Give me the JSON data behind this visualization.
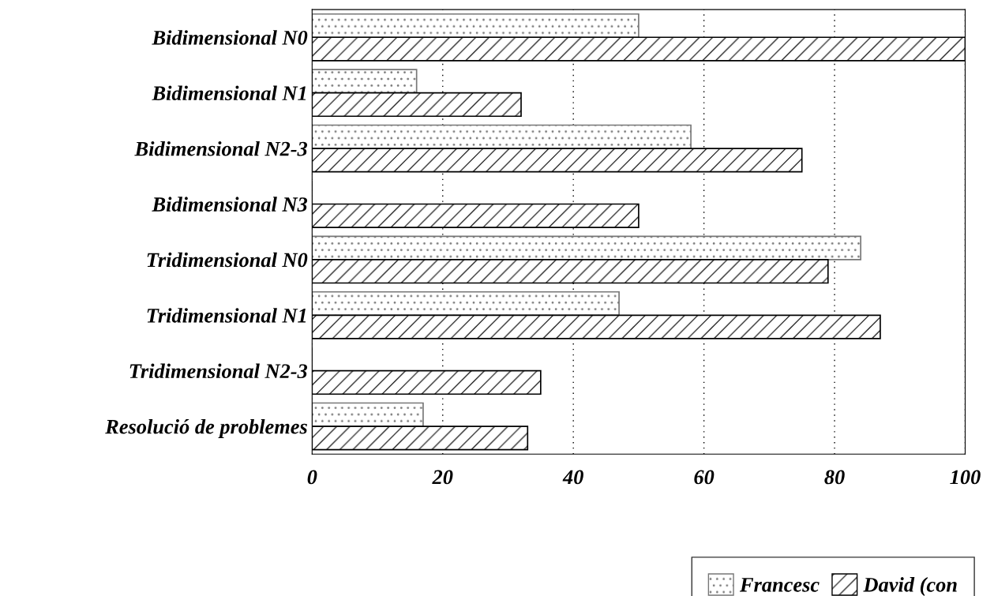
{
  "chart_data": {
    "type": "bar",
    "orientation": "horizontal",
    "categories": [
      "Bidimensional N0",
      "Bidimensional N1",
      "Bidimensional N2-3",
      "Bidimensional N3",
      "Tridimensional N0",
      "Tridimensional N1",
      "Tridimensional N2-3",
      "Resolució de problemes"
    ],
    "series": [
      {
        "name": "Francesc",
        "color": "#777777",
        "values": [
          50,
          16,
          58,
          0,
          84,
          47,
          0,
          17
        ]
      },
      {
        "name": "David (con",
        "color": "#000000",
        "values": [
          100,
          32,
          75,
          50,
          79,
          87,
          35,
          33
        ]
      }
    ],
    "xlim": [
      0,
      100
    ],
    "xticks": [
      0,
      20,
      40,
      60,
      80,
      100
    ],
    "grid": "x",
    "legend": "bottom right"
  }
}
